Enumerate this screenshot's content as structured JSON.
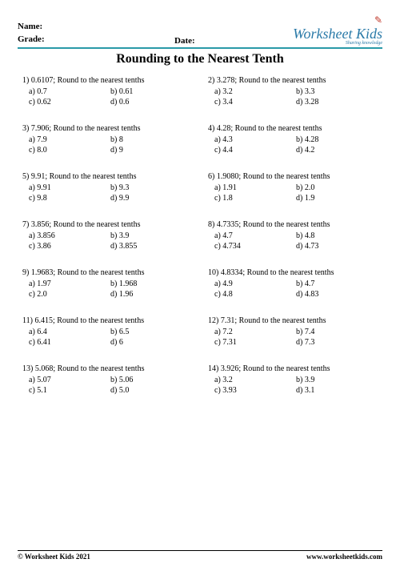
{
  "header": {
    "name_label": "Name:",
    "grade_label": "Grade:",
    "date_label": "Date:",
    "brand": "Worksheet Kids",
    "tagline": "Sharing knowledge"
  },
  "title": "Rounding to the Nearest Tenth",
  "instruction": "Round to the nearest tenths",
  "questions": [
    {
      "n": "1)",
      "val": "0.6107",
      "a": "0.7",
      "b": "0.61",
      "c": "0.62",
      "d": "0.6"
    },
    {
      "n": "2)",
      "val": "3.278",
      "a": "3.2",
      "b": "3.3",
      "c": "3.4",
      "d": "3.28"
    },
    {
      "n": "3)",
      "val": "7.906",
      "a": "7.9",
      "b": "8",
      "c": "8.0",
      "d": "9"
    },
    {
      "n": "4)",
      "val": "4.28",
      "a": "4.3",
      "b": "4.28",
      "c": "4.4",
      "d": "4.2"
    },
    {
      "n": "5)",
      "val": "9.91",
      "a": "9.91",
      "b": "9.3",
      "c": "9.8",
      "d": "9.9"
    },
    {
      "n": "6)",
      "val": "1.9080",
      "a": "1.91",
      "b": "2.0",
      "c": "1.8",
      "d": "1.9"
    },
    {
      "n": "7)",
      "val": "3.856",
      "a": "3.856",
      "b": "3.9",
      "c": "3.86",
      "d": "3.855"
    },
    {
      "n": "8)",
      "val": "4.7335",
      "a": "4.7",
      "b": "4.8",
      "c": "4.734",
      "d": "4.73"
    },
    {
      "n": "9)",
      "val": "1.9683",
      "a": "1.97",
      "b": "1.968",
      "c": "2.0",
      "d": "1.96"
    },
    {
      "n": "10)",
      "val": "4.8334",
      "a": "4.9",
      "b": "4.7",
      "c": "4.8",
      "d": "4.83"
    },
    {
      "n": "11)",
      "val": "6.415",
      "a": "6.4",
      "b": "6.5",
      "c": "6.41",
      "d": "6"
    },
    {
      "n": "12)",
      "val": "7.31",
      "a": "7.2",
      "b": "7.4",
      "c": "7.31",
      "d": "7.3"
    },
    {
      "n": "13)",
      "val": "5.068",
      "a": "5.07",
      "b": "5.06",
      "c": "5.1",
      "d": "5.0"
    },
    {
      "n": "14)",
      "val": "3.926",
      "a": "3.2",
      "b": "3.9",
      "c": "3.93",
      "d": "3.1"
    }
  ],
  "footer": {
    "copyright": "© Worksheet Kids 2021",
    "url": "www.worksheetkids.com"
  },
  "colors": {
    "brand": "#2a7aa8",
    "divider": "#2a9aa8",
    "pencil": "#c0392b",
    "text": "#000000",
    "background": "#ffffff"
  }
}
